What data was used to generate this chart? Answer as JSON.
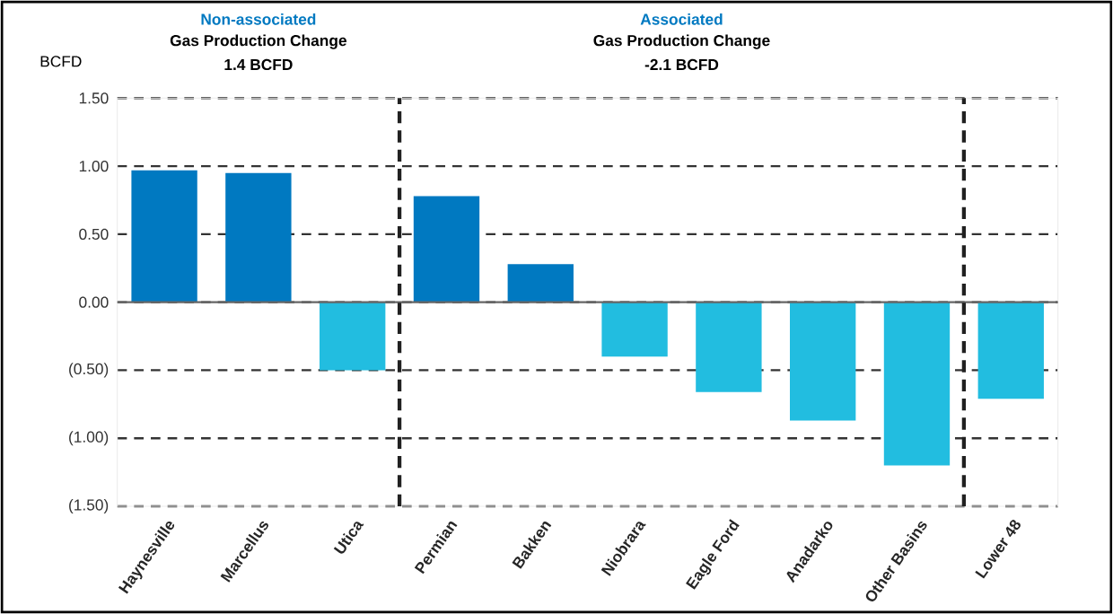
{
  "chart_data": {
    "type": "bar",
    "ylabel": "BCFD",
    "categories": [
      "Haynesville",
      "Marcellus",
      "Utica",
      "Permian",
      "Bakken",
      "Niobrara",
      "Eagle Ford",
      "Anadarko",
      "Other Basins",
      "Lower 48"
    ],
    "values": [
      0.97,
      0.95,
      -0.5,
      0.78,
      0.28,
      -0.4,
      -0.66,
      -0.87,
      -1.2,
      -0.71
    ],
    "colors": [
      "#0079c1",
      "#0079c1",
      "#22bde0",
      "#0079c1",
      "#0079c1",
      "#22bde0",
      "#22bde0",
      "#22bde0",
      "#22bde0",
      "#22bde0"
    ],
    "ylim": [
      -1.5,
      1.5
    ],
    "yticks": [
      {
        "value": 1.5,
        "label": "1.50"
      },
      {
        "value": 1.0,
        "label": "1.00"
      },
      {
        "value": 0.5,
        "label": "0.50"
      },
      {
        "value": 0.0,
        "label": "0.00"
      },
      {
        "value": -0.5,
        "label": "(0.50)"
      },
      {
        "value": -1.0,
        "label": "(1.00)"
      },
      {
        "value": -1.5,
        "label": "(1.50)"
      }
    ],
    "grid": "y",
    "annotations": [
      "Non-associated",
      "Gas Production Change",
      "1.4 BCFD",
      "Associated",
      "Gas Production Change",
      "-2.1 BCFD"
    ]
  }
}
